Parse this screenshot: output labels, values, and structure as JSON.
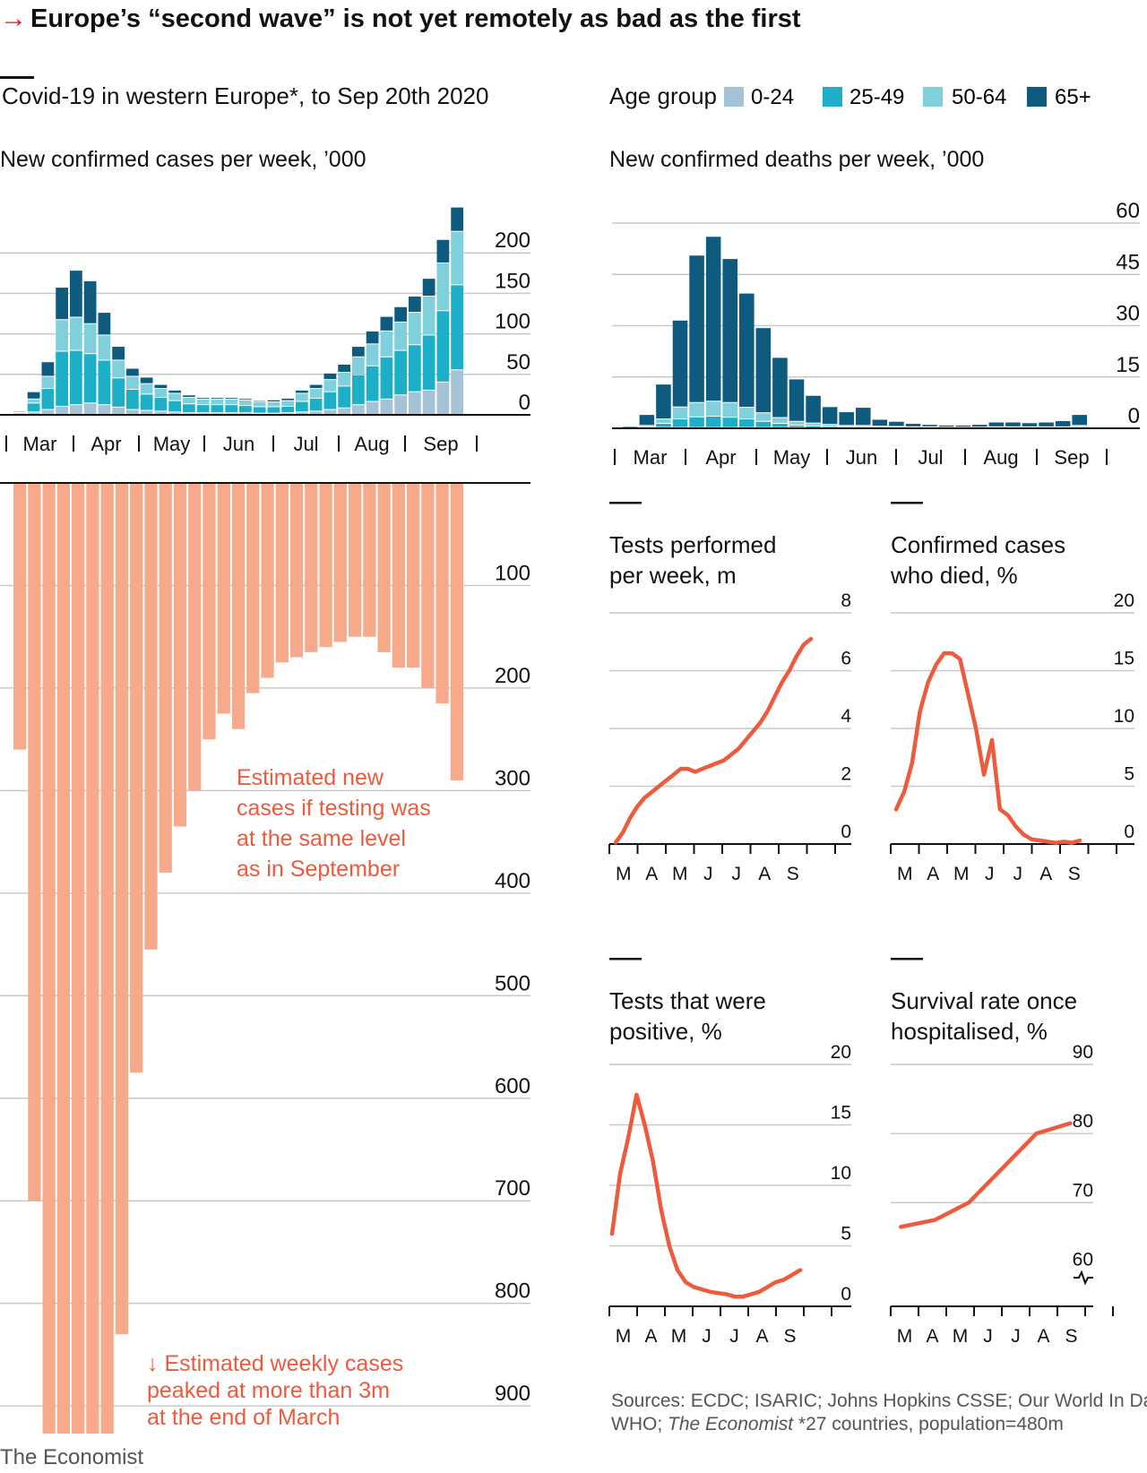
{
  "header": {
    "title": "Europe’s “second wave” is not yet remotely as bad as the first",
    "subtitle": "Covid-19 in western Europe*, to Sep 20th 2020",
    "accent_color": "#e3120b"
  },
  "legend": {
    "title": "Age group",
    "items": [
      {
        "label": "0-24",
        "color": "#a4c3d7"
      },
      {
        "label": "25-49",
        "color": "#1cafc7"
      },
      {
        "label": "50-64",
        "color": "#7fcfdd"
      },
      {
        "label": "65+",
        "color": "#0f5b80"
      }
    ]
  },
  "colors": {
    "line": "#ee5a3c",
    "estimate_bars": "#f7a98b",
    "annotation": "#ee5a3c",
    "grid": "#c9c9c9",
    "axis": "#121212"
  },
  "annotations": {
    "estimate_label": [
      "Estimated new",
      "cases if testing was",
      "at the same level",
      "as in September"
    ],
    "peak_note": [
      "↓ Estimated weekly cases",
      "peaked at more than 3m",
      "at the end of March"
    ]
  },
  "footer": {
    "sources_line1": "Sources: ECDC; ISARIC; Johns Hopkins CSSE; Our World In Data;",
    "sources_line2_a": "WHO; ",
    "sources_line2_b": "The Economist",
    "sources_line2_c": "   *27 countries, population=480m",
    "brand": "The Economist"
  },
  "chart_data": [
    {
      "id": "cases",
      "type": "bar",
      "title": "New confirmed cases per week, ’000",
      "stacked": true,
      "x_labels": [
        "Mar",
        "Apr",
        "May",
        "Jun",
        "Jul",
        "Aug",
        "Sep"
      ],
      "y_ticks": [
        "0",
        "50",
        "100",
        "150",
        "200"
      ],
      "ylim": [
        0,
        250
      ],
      "series_names": [
        "0-24",
        "25-49",
        "50-64",
        "65+"
      ],
      "stacks": [
        [
          0.5,
          1.5,
          1,
          1.5
        ],
        [
          3,
          11,
          5,
          9
        ],
        [
          6,
          26,
          15,
          18
        ],
        [
          10,
          68,
          39,
          40
        ],
        [
          12,
          67,
          41,
          58
        ],
        [
          14,
          61,
          37,
          53
        ],
        [
          12,
          55,
          31,
          28
        ],
        [
          9,
          36,
          22,
          17
        ],
        [
          6,
          25,
          16,
          10
        ],
        [
          5,
          20,
          13,
          8
        ],
        [
          4,
          17,
          11,
          5
        ],
        [
          3,
          14,
          9,
          4
        ],
        [
          2,
          11,
          8,
          3
        ],
        [
          2,
          10,
          7,
          2
        ],
        [
          2,
          10,
          7,
          2
        ],
        [
          2,
          10,
          7,
          2
        ],
        [
          2,
          9,
          7,
          2
        ],
        [
          1.5,
          8,
          6.5,
          1.5
        ],
        [
          1.5,
          8,
          6,
          2.5
        ],
        [
          2,
          8,
          7,
          3
        ],
        [
          3,
          13,
          10,
          4
        ],
        [
          4,
          16,
          12,
          5
        ],
        [
          6,
          22,
          15,
          8
        ],
        [
          8,
          27,
          17,
          10
        ],
        [
          12,
          37,
          22,
          13
        ],
        [
          16,
          44,
          27,
          16
        ],
        [
          19,
          52,
          32,
          18
        ],
        [
          24,
          55,
          35,
          19
        ],
        [
          28,
          58,
          40,
          20
        ],
        [
          30,
          68,
          48,
          22
        ],
        [
          40,
          88,
          59,
          29
        ],
        [
          55,
          105,
          66,
          30
        ]
      ]
    },
    {
      "id": "deaths",
      "type": "bar",
      "title": "New confirmed deaths per week, ’000",
      "stacked": true,
      "x_labels": [
        "Mar",
        "Apr",
        "May",
        "Jun",
        "Jul",
        "Aug",
        "Sep"
      ],
      "y_ticks": [
        "0",
        "15",
        "30",
        "45",
        "60"
      ],
      "ylim": [
        0,
        60
      ],
      "series_names": [
        "0-24",
        "25-49",
        "50-64",
        "65+"
      ],
      "stacks": [
        [
          0,
          0.05,
          0.05,
          0.4
        ],
        [
          0,
          0.3,
          0.4,
          3.2
        ],
        [
          0.1,
          1.2,
          1.3,
          10.2
        ],
        [
          0.1,
          2.5,
          3.5,
          25.4
        ],
        [
          0.1,
          3.1,
          4.2,
          43.1
        ],
        [
          0.1,
          3.3,
          4.4,
          48.2
        ],
        [
          0.1,
          3,
          4.3,
          42.1
        ],
        [
          0.1,
          2.5,
          3.4,
          33.4
        ],
        [
          0.1,
          1.8,
          2.5,
          24.9
        ],
        [
          0.1,
          1.2,
          1.7,
          17.6
        ],
        [
          0.1,
          0.7,
          1.1,
          12.4
        ],
        [
          0,
          0.6,
          0.8,
          8.1
        ],
        [
          0,
          0.4,
          0.6,
          5.2
        ],
        [
          0,
          0.3,
          0.4,
          4
        ],
        [
          0,
          0.3,
          0.4,
          5.3
        ],
        [
          0,
          0.2,
          0.3,
          2
        ],
        [
          0,
          0.2,
          0.2,
          1.5
        ],
        [
          0,
          0.1,
          0.2,
          1
        ],
        [
          0,
          0.1,
          0.2,
          0.7
        ],
        [
          0,
          0.1,
          0.1,
          0.6
        ],
        [
          0,
          0.1,
          0.1,
          0.6
        ],
        [
          0,
          0.1,
          0.1,
          0.8
        ],
        [
          0,
          0.1,
          0.2,
          1.4
        ],
        [
          0,
          0.1,
          0.2,
          1.4
        ],
        [
          0,
          0.1,
          0.2,
          1.2
        ],
        [
          0,
          0.1,
          0.2,
          1.4
        ],
        [
          0,
          0.1,
          0.2,
          1.8
        ],
        [
          0,
          0.3,
          0.4,
          3.2
        ]
      ]
    },
    {
      "id": "estimated",
      "type": "bar",
      "orientation": "downward",
      "y_ticks": [
        "100",
        "200",
        "300",
        "400",
        "500",
        "600",
        "700",
        "800",
        "900"
      ],
      "ylim": [
        0,
        920
      ],
      "values": [
        260,
        700,
        950,
        950,
        950,
        950,
        950,
        830,
        575,
        455,
        380,
        335,
        300,
        250,
        225,
        240,
        205,
        190,
        175,
        170,
        165,
        160,
        155,
        150,
        150,
        165,
        180,
        180,
        200,
        215,
        290
      ]
    },
    {
      "id": "tests",
      "type": "line",
      "title_lines": [
        "Tests performed",
        "per week, m"
      ],
      "x_labels": [
        "M",
        "A",
        "M",
        "J",
        "J",
        "A",
        "S"
      ],
      "y_ticks": [
        "0",
        "2",
        "4",
        "6",
        "8"
      ],
      "ylim": [
        0,
        8
      ],
      "values": [
        0.05,
        0.4,
        0.9,
        1.3,
        1.6,
        1.8,
        2.0,
        2.2,
        2.4,
        2.6,
        2.6,
        2.5,
        2.6,
        2.7,
        2.8,
        2.9,
        3.1,
        3.3,
        3.6,
        3.9,
        4.2,
        4.6,
        5.1,
        5.6,
        6.0,
        6.5,
        6.9,
        7.1
      ]
    },
    {
      "id": "cfr",
      "type": "line",
      "title_lines": [
        "Confirmed cases",
        "who died, %"
      ],
      "x_labels": [
        "M",
        "A",
        "M",
        "J",
        "J",
        "A",
        "S"
      ],
      "y_ticks": [
        "0",
        "5",
        "10",
        "15",
        "20"
      ],
      "ylim": [
        0,
        20
      ],
      "values": [
        3,
        4.5,
        7,
        11.5,
        14,
        15.5,
        16.5,
        16.5,
        16,
        13,
        10,
        6,
        9,
        3,
        2.5,
        1.5,
        0.8,
        0.4,
        0.3,
        0.2,
        0.1,
        0.2,
        0.1,
        0.3
      ]
    },
    {
      "id": "positivity",
      "type": "line",
      "title_lines": [
        "Tests that were",
        "positive, %"
      ],
      "x_labels": [
        "M",
        "A",
        "M",
        "J",
        "J",
        "A",
        "S"
      ],
      "y_ticks": [
        "0",
        "5",
        "10",
        "15",
        "20"
      ],
      "ylim": [
        0,
        20
      ],
      "values": [
        6,
        11,
        14,
        17.5,
        15,
        12,
        8,
        5,
        3,
        2,
        1.6,
        1.4,
        1.2,
        1.1,
        1,
        0.8,
        0.8,
        1,
        1.2,
        1.6,
        2,
        2.2,
        2.6,
        3
      ]
    },
    {
      "id": "survival",
      "type": "line",
      "title_lines": [
        "Survival rate once",
        "hospitalised, %"
      ],
      "x_labels": [
        "M",
        "A",
        "M",
        "J",
        "J",
        "A",
        "S"
      ],
      "y_ticks": [
        "60",
        "70",
        "80",
        "90"
      ],
      "ylim": [
        55,
        90
      ],
      "x": [
        0,
        1,
        2,
        3,
        4,
        5
      ],
      "values": [
        66.5,
        67.5,
        70,
        75,
        80,
        81.5
      ]
    }
  ]
}
